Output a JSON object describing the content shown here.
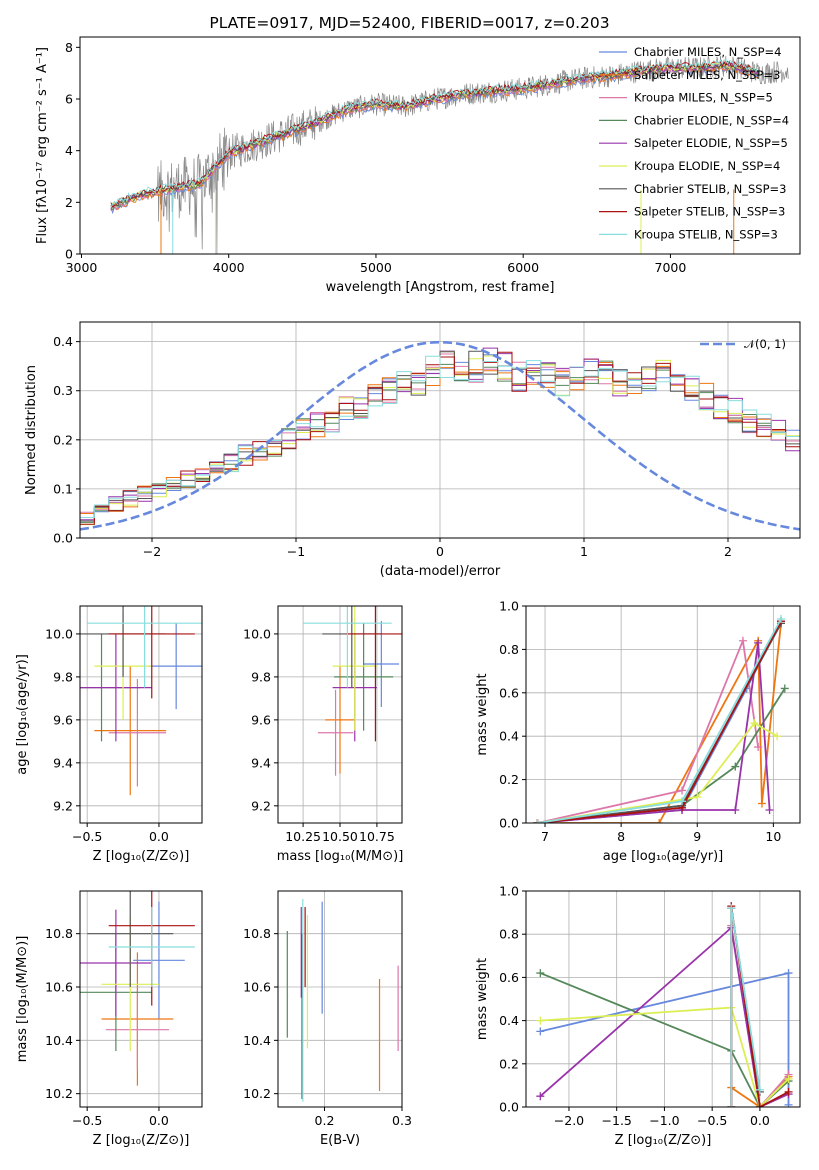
{
  "colors": [
    "#6688dd",
    "#ee7711",
    "#dd77aa",
    "#55885a",
    "#9933aa",
    "#ddee55",
    "#555555",
    "#aa1111",
    "#88dddd"
  ],
  "chart_data": [
    {
      "id": "spectrum",
      "type": "line",
      "title": "PLATE=0917, MJD=52400, FIBERID=0017, z=0.203",
      "xlabel": "wavelength [Angstrom, rest frame]",
      "ylabel": "Flux [fλ10⁻¹⁷ erg cm⁻² s⁻¹ A⁻¹]",
      "xlim": [
        2990,
        7880
      ],
      "ylim": [
        0,
        8.4
      ],
      "xticks": [
        "3000",
        "4000",
        "5000",
        "6000",
        "7000"
      ],
      "yticks": [
        "0",
        "2",
        "4",
        "6",
        "8"
      ],
      "grid": false,
      "legend_position": "lower-right",
      "data_color": "#888888",
      "observed_envelope": {
        "x": [
          3200,
          3400,
          3600,
          3800,
          4000,
          4200,
          4400,
          4600,
          4800,
          5000,
          5200,
          5400,
          5600,
          5800,
          6000,
          6200,
          6400,
          6600,
          6800,
          7000,
          7200,
          7400,
          7600,
          7800
        ],
        "y": [
          1.8,
          2.3,
          2.5,
          2.7,
          3.9,
          4.3,
          4.7,
          5.1,
          5.6,
          5.8,
          5.7,
          6.0,
          6.2,
          6.3,
          6.4,
          6.6,
          6.8,
          6.9,
          7.1,
          7.2,
          7.2,
          7.3,
          7.0,
          7.1
        ]
      },
      "series": [
        {
          "name": "Chabrier MILES, N_SSP=4"
        },
        {
          "name": "Salpeter MILES, N_SSP=3"
        },
        {
          "name": "Kroupa MILES, N_SSP=5"
        },
        {
          "name": "Chabrier ELODIE, N_SSP=4"
        },
        {
          "name": "Salpeter ELODIE, N_SSP=5"
        },
        {
          "name": "Kroupa ELODIE, N_SSP=4"
        },
        {
          "name": "Chabrier STELIB, N_SSP=3"
        },
        {
          "name": "Salpeter STELIB, N_SSP=3"
        },
        {
          "name": "Kroupa STELIB, N_SSP=3"
        }
      ]
    },
    {
      "id": "residuals",
      "type": "histogram",
      "xlabel": "(data-model)/error",
      "ylabel": "Normed distribution",
      "xlim": [
        -2.5,
        2.5
      ],
      "ylim": [
        0,
        0.44
      ],
      "xticks": [
        "−2",
        "−1",
        "0",
        "1",
        "2"
      ],
      "yticks": [
        "0.0",
        "0.1",
        "0.2",
        "0.3",
        "0.4"
      ],
      "grid": true,
      "legend_position": "top-right",
      "reference_curve": "N(0,1)",
      "reference_label": "𝒩(0, 1)",
      "bin_width": 0.1,
      "bins_start": -2.5,
      "histogram_mean": [
        0.04,
        0.06,
        0.07,
        0.08,
        0.09,
        0.1,
        0.11,
        0.12,
        0.13,
        0.14,
        0.15,
        0.17,
        0.18,
        0.19,
        0.2,
        0.22,
        0.23,
        0.24,
        0.26,
        0.27,
        0.29,
        0.3,
        0.31,
        0.32,
        0.34,
        0.35,
        0.34,
        0.35,
        0.36,
        0.35,
        0.33,
        0.34,
        0.33,
        0.32,
        0.33,
        0.34,
        0.33,
        0.32,
        0.31,
        0.33,
        0.34,
        0.32,
        0.3,
        0.29,
        0.27,
        0.26,
        0.24,
        0.23,
        0.22,
        0.2,
        0.18,
        0.17,
        0.16,
        0.15,
        0.14,
        0.13,
        0.12,
        0.1,
        0.09,
        0.08,
        0.08,
        0.07,
        0.06,
        0.05,
        0.04
      ]
    },
    {
      "id": "age-vs-Z",
      "type": "errorbar",
      "xlabel": "Z [log₁₀(Z/Z⊙)]",
      "ylabel": "age  [log₁₀(age/yr)]",
      "xlim": [
        -0.55,
        0.3
      ],
      "ylim": [
        9.12,
        10.13
      ],
      "xticks": [
        "−0.5",
        "0.0"
      ],
      "yticks": [
        "9.2",
        "9.4",
        "9.6",
        "9.8",
        "10.0"
      ],
      "points": [
        {
          "x": 0.12,
          "xerr": 0.2,
          "y": 9.85,
          "yerr": 0.2
        },
        {
          "x": -0.2,
          "xerr": 0.25,
          "y": 9.55,
          "yerr": 0.3
        },
        {
          "x": -0.15,
          "xerr": 0.2,
          "y": 9.54,
          "yerr": 0.25
        },
        {
          "x": -0.4,
          "xerr": 0.27,
          "y": 9.75,
          "yerr": 0.25
        },
        {
          "x": -0.3,
          "xerr": 0.25,
          "y": 9.75,
          "yerr": 0.25
        },
        {
          "x": -0.25,
          "xerr": 0.2,
          "y": 9.85,
          "yerr": 0.25
        },
        {
          "x": -0.25,
          "xerr": 0.3,
          "y": 10.0,
          "yerr": 0.2
        },
        {
          "x": -0.05,
          "xerr": 0.3,
          "y": 10.0,
          "yerr": 0.3
        },
        {
          "x": -0.1,
          "xerr": 0.4,
          "y": 10.05,
          "yerr": 0.3
        }
      ]
    },
    {
      "id": "age-vs-mass",
      "type": "errorbar",
      "xlabel": "mass [log₁₀(M/M⊙)]",
      "ylabel": "",
      "xlim": [
        10.08,
        10.92
      ],
      "ylim": [
        9.12,
        10.13
      ],
      "xticks": [
        "10.25",
        "10.50",
        "10.75"
      ],
      "yticks": [
        "9.2",
        "9.4",
        "9.6",
        "9.8",
        "10.0"
      ],
      "points": [
        {
          "x": 10.78,
          "xerr": 0.12,
          "y": 9.86,
          "yerr": 0.2
        },
        {
          "x": 10.5,
          "xerr": 0.1,
          "y": 9.6,
          "yerr": 0.25
        },
        {
          "x": 10.47,
          "xerr": 0.12,
          "y": 9.54,
          "yerr": 0.2
        },
        {
          "x": 10.66,
          "xerr": 0.2,
          "y": 9.8,
          "yerr": 0.25
        },
        {
          "x": 10.6,
          "xerr": 0.15,
          "y": 9.75,
          "yerr": 0.25
        },
        {
          "x": 10.6,
          "xerr": 0.15,
          "y": 9.85,
          "yerr": 0.3
        },
        {
          "x": 10.58,
          "xerr": 0.2,
          "y": 10.0,
          "yerr": 0.25
        },
        {
          "x": 10.74,
          "xerr": 0.2,
          "y": 10.0,
          "yerr": 0.5
        },
        {
          "x": 10.55,
          "xerr": 0.3,
          "y": 10.05,
          "yerr": 0.3
        }
      ]
    },
    {
      "id": "weight-vs-age",
      "type": "line",
      "xlabel": "age  [log₁₀(age/yr)]",
      "ylabel": "mass weight",
      "xlim": [
        6.75,
        10.35
      ],
      "ylim": [
        0,
        1.0
      ],
      "xticks": [
        "7",
        "8",
        "9",
        "10"
      ],
      "yticks": [
        "0.0",
        "0.2",
        "0.4",
        "0.6",
        "0.8",
        "1.0"
      ],
      "grid": true,
      "series": [
        {
          "x": [
            6.9,
            8.8,
            9.65,
            10.1
          ],
          "y": [
            0.0,
            0.06,
            0.62,
            0.93
          ]
        },
        {
          "x": [
            6.9,
            8.5,
            9.8,
            9.85,
            10.1
          ],
          "y": [
            0.0,
            0.0,
            0.84,
            0.09,
            0.92
          ]
        },
        {
          "x": [
            6.9,
            8.8,
            9.6,
            9.8
          ],
          "y": [
            0.0,
            0.15,
            0.84,
            0.35
          ]
        },
        {
          "x": [
            6.9,
            8.8,
            9.5,
            10.15
          ],
          "y": [
            0.0,
            0.08,
            0.26,
            0.62
          ]
        },
        {
          "x": [
            6.9,
            8.8,
            9.5,
            9.8,
            9.95
          ],
          "y": [
            0.0,
            0.06,
            0.06,
            0.83,
            0.06
          ]
        },
        {
          "x": [
            6.9,
            9.0,
            9.75,
            10.05
          ],
          "y": [
            0.0,
            0.12,
            0.46,
            0.4
          ]
        },
        {
          "x": [
            6.9,
            8.8,
            10.1
          ],
          "y": [
            0.0,
            0.08,
            0.92
          ]
        },
        {
          "x": [
            6.9,
            8.8,
            10.1
          ],
          "y": [
            0.0,
            0.07,
            0.93
          ]
        },
        {
          "x": [
            6.9,
            8.8,
            10.1
          ],
          "y": [
            0.0,
            0.1,
            0.94
          ]
        }
      ]
    },
    {
      "id": "mass-vs-Z",
      "type": "errorbar",
      "xlabel": "Z [log₁₀(Z/Z⊙)]",
      "ylabel": "mass [log₁₀(M/M⊙)]",
      "xlim": [
        -0.55,
        0.3
      ],
      "ylim": [
        10.15,
        10.96
      ],
      "xticks": [
        "−0.5",
        "0.0"
      ],
      "yticks": [
        "10.2",
        "10.4",
        "10.6",
        "10.8"
      ],
      "points": [
        {
          "x": 0.0,
          "xerr": 0.18,
          "y": 10.7,
          "yerr": 0.22
        },
        {
          "x": -0.15,
          "xerr": 0.25,
          "y": 10.48,
          "yerr": 0.25
        },
        {
          "x": -0.15,
          "xerr": 0.22,
          "y": 10.44,
          "yerr": 0.15
        },
        {
          "x": -0.3,
          "xerr": 0.25,
          "y": 10.58,
          "yerr": 0.22
        },
        {
          "x": -0.3,
          "xerr": 0.25,
          "y": 10.69,
          "yerr": 0.2
        },
        {
          "x": -0.2,
          "xerr": 0.2,
          "y": 10.61,
          "yerr": 0.25
        },
        {
          "x": -0.2,
          "xerr": 0.3,
          "y": 10.8,
          "yerr": 0.2
        },
        {
          "x": -0.05,
          "xerr": 0.3,
          "y": 10.83,
          "yerr": 0.3
        },
        {
          "x": -0.05,
          "xerr": 0.3,
          "y": 10.75,
          "yerr": 0.15
        }
      ]
    },
    {
      "id": "mass-vs-EBV",
      "type": "errorbar",
      "xlabel": "E(B-V)",
      "ylabel": "",
      "xlim": [
        0.14,
        0.3
      ],
      "ylim": [
        10.15,
        10.96
      ],
      "xticks": [
        "0.2",
        "0.3"
      ],
      "yticks": [
        "10.2",
        "10.4",
        "10.6",
        "10.8"
      ],
      "points": [
        {
          "x": 0.197,
          "y": 10.71,
          "yerr": 0.21
        },
        {
          "x": 0.271,
          "y": 10.42,
          "yerr": 0.21
        },
        {
          "x": 0.295,
          "y": 10.52,
          "yerr": 0.16
        },
        {
          "x": 0.152,
          "y": 10.61,
          "yerr": 0.2
        },
        {
          "x": 0.17,
          "y": 10.73,
          "yerr": 0.17
        },
        {
          "x": 0.178,
          "y": 10.62,
          "yerr": 0.25
        },
        {
          "x": 0.171,
          "y": 10.49,
          "yerr": 0.31
        },
        {
          "x": 0.175,
          "y": 10.75,
          "yerr": 0.15
        },
        {
          "x": 0.172,
          "y": 10.55,
          "yerr": 0.38
        }
      ]
    },
    {
      "id": "weight-vs-Z",
      "type": "line",
      "xlabel": "Z [log₁₀(Z/Z⊙)]",
      "ylabel": "mass weight",
      "xlim": [
        -2.45,
        0.42
      ],
      "ylim": [
        0,
        1.0
      ],
      "xticks": [
        "−2.0",
        "−1.5",
        "−1.0",
        "−0.5",
        "0.0"
      ],
      "yticks": [
        "0.0",
        "0.2",
        "0.4",
        "0.6",
        "0.8",
        "1.0"
      ],
      "grid": true,
      "series": [
        {
          "x": [
            -2.3,
            0.3,
            0.3
          ],
          "y": [
            0.35,
            0.62,
            0.01
          ]
        },
        {
          "x": [
            -0.3,
            -0.3,
            0.0,
            0.3
          ],
          "y": [
            0.0,
            0.09,
            0.0,
            0.14
          ]
        },
        {
          "x": [
            -0.3,
            -0.3,
            0.0,
            0.3
          ],
          "y": [
            0.0,
            0.84,
            0.0,
            0.15
          ]
        },
        {
          "x": [
            -2.3,
            -0.3,
            0.0,
            0.3
          ],
          "y": [
            0.62,
            0.26,
            0.0,
            0.12
          ]
        },
        {
          "x": [
            -2.3,
            -0.3,
            0.0,
            0.3
          ],
          "y": [
            0.05,
            0.83,
            0.0,
            0.06
          ]
        },
        {
          "x": [
            -2.3,
            -0.3,
            0.0,
            0.3
          ],
          "y": [
            0.4,
            0.46,
            0.0,
            0.13
          ]
        },
        {
          "x": [
            -0.3,
            -0.3,
            0.0
          ],
          "y": [
            0.0,
            0.92,
            0.07
          ]
        },
        {
          "x": [
            -0.3,
            -0.3,
            0.0,
            0.3
          ],
          "y": [
            0.0,
            0.93,
            0.0,
            0.07
          ]
        },
        {
          "x": [
            -0.3,
            -0.3,
            0.0
          ],
          "y": [
            0.0,
            0.92,
            0.08
          ]
        }
      ]
    }
  ]
}
